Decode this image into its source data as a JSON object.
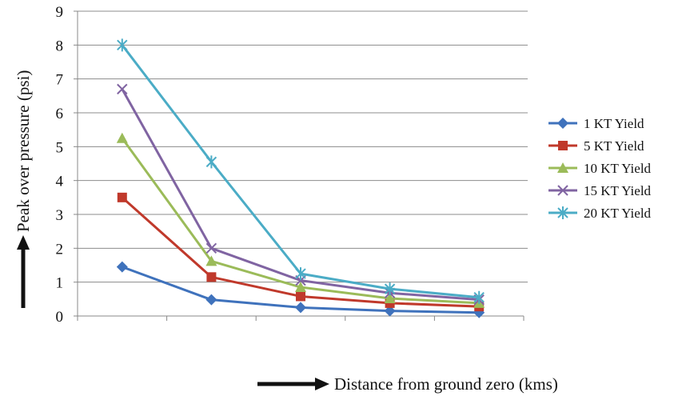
{
  "chart_data": {
    "type": "line",
    "title": "",
    "xlabel": "Distance from ground zero (kms)",
    "ylabel": "Peak over pressure (psi)",
    "ylim": [
      0,
      9
    ],
    "yticks": [
      0,
      1,
      2,
      3,
      4,
      5,
      6,
      7,
      8,
      9
    ],
    "x": [
      1,
      2,
      3,
      4,
      5
    ],
    "x_tick_labels_shown": false,
    "grid": "horizontal",
    "legend": "right",
    "series": [
      {
        "name": "1 KT Yield",
        "color": "#3F72BC",
        "marker": "diamond",
        "values": [
          1.45,
          0.48,
          0.25,
          0.15,
          0.1
        ]
      },
      {
        "name": "5 KT Yield",
        "color": "#C0392B",
        "marker": "square",
        "values": [
          3.5,
          1.15,
          0.58,
          0.38,
          0.28
        ]
      },
      {
        "name": "10 KT Yield",
        "color": "#9BBB59",
        "marker": "triangle",
        "values": [
          5.25,
          1.62,
          0.85,
          0.52,
          0.38
        ]
      },
      {
        "name": "15 KT Yield",
        "color": "#8064A2",
        "marker": "x",
        "values": [
          6.7,
          2.0,
          1.05,
          0.68,
          0.48
        ]
      },
      {
        "name": "20 KT Yield",
        "color": "#4BACC6",
        "marker": "star",
        "values": [
          8.0,
          4.55,
          1.25,
          0.8,
          0.55
        ]
      }
    ]
  }
}
